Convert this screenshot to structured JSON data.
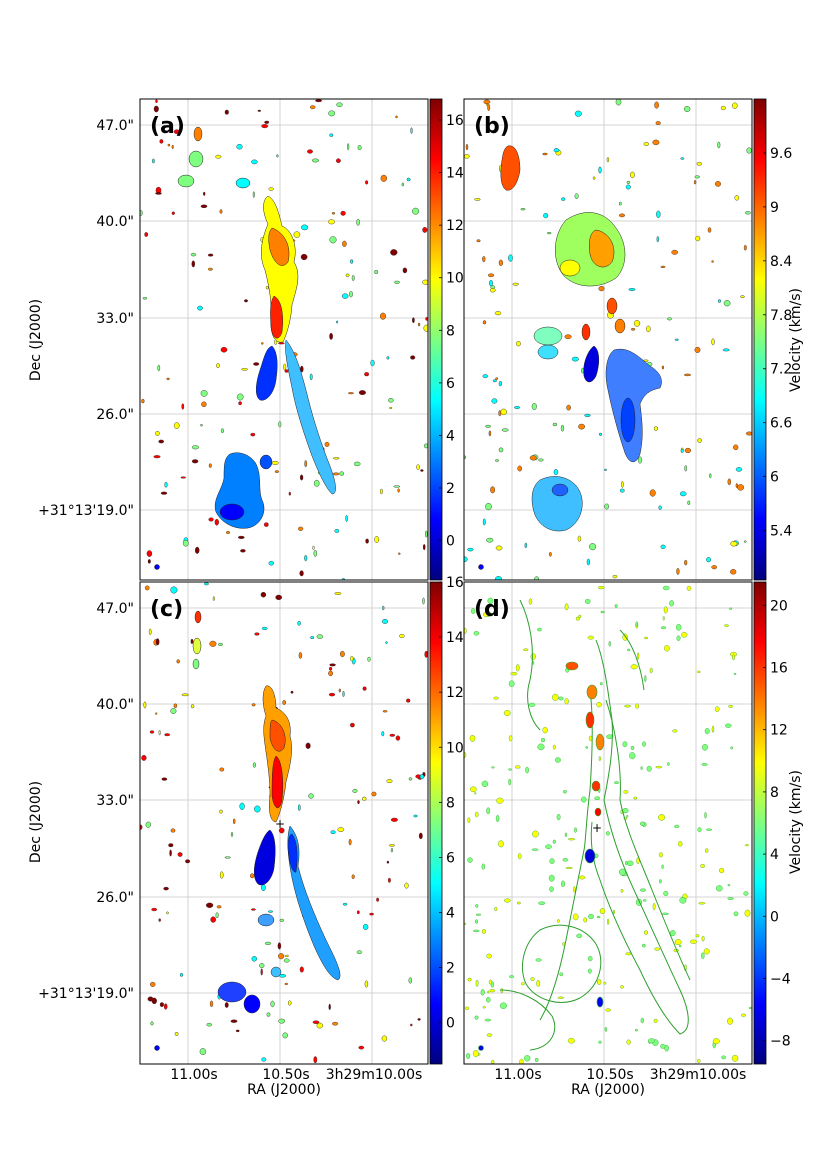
{
  "chart_data": [
    {
      "type": "heatmap",
      "panel_label": "(a)",
      "xlabel": "",
      "ylabel": "Dec (J2000)",
      "x_ticks": [],
      "y_ticks": [
        "47.0\"",
        "40.0\"",
        "33.0\"",
        "26.0\"",
        "+31°13'19.0\""
      ],
      "colorbar": {
        "label": "",
        "range": [
          -1.5,
          16.8
        ],
        "ticks": [
          0,
          2,
          4,
          6,
          8,
          10,
          12,
          14,
          16
        ]
      }
    },
    {
      "type": "heatmap",
      "panel_label": "(b)",
      "xlabel": "",
      "ylabel": "",
      "x_ticks": [],
      "y_ticks": [],
      "colorbar": {
        "label": "Velocity (km/s)",
        "range": [
          4.85,
          10.2
        ],
        "ticks": [
          5.4,
          6.0,
          6.6,
          7.2,
          7.8,
          8.4,
          9.0,
          9.6
        ]
      }
    },
    {
      "type": "heatmap",
      "panel_label": "(c)",
      "xlabel": "RA (J2000)",
      "ylabel": "Dec (J2000)",
      "x_ticks": [
        "11.00s",
        "10.50s",
        "3h29m10.00s"
      ],
      "y_ticks": [
        "47.0\"",
        "40.0\"",
        "33.0\"",
        "26.0\"",
        "+31°13'19.0\""
      ],
      "colorbar": {
        "label": "",
        "range": [
          -1.5,
          16.0
        ],
        "ticks": [
          0,
          2,
          4,
          6,
          8,
          10,
          12,
          14,
          16
        ]
      }
    },
    {
      "type": "heatmap",
      "panel_label": "(d)",
      "xlabel": "RA (J2000)",
      "ylabel": "",
      "x_ticks": [
        "11.00s",
        "10.50s",
        "3h29m10.00s"
      ],
      "y_ticks": [],
      "colorbar": {
        "label": "Velocity (km/s)",
        "range": [
          -9.5,
          21.5
        ],
        "ticks": [
          -8,
          -4,
          0,
          4,
          8,
          12,
          16,
          20
        ]
      }
    }
  ],
  "colors": {
    "jet": [
      "#00007f",
      "#0000ff",
      "#007fff",
      "#00ffff",
      "#7fff7f",
      "#ffff00",
      "#ff7f00",
      "#ff0000",
      "#7f0000"
    ],
    "contour": "#2ca02c",
    "grid": "#c8c8c8",
    "axis": "#000000"
  }
}
